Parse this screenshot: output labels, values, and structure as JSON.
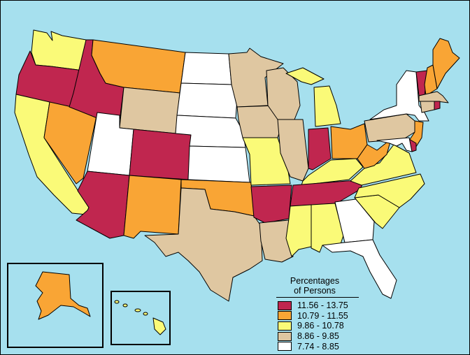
{
  "legend": {
    "title_line1": "Percentages",
    "title_line2": "of Persons",
    "classes": [
      {
        "label": "11.56 - 13.75",
        "color": "#c0264f"
      },
      {
        "label": "10.79 - 11.55",
        "color": "#f9a535"
      },
      {
        "label": "9.86 - 10.78",
        "color": "#fafa78"
      },
      {
        "label": "8.86 - 9.85",
        "color": "#dfc7a1"
      },
      {
        "label": "7.74 - 8.85",
        "color": "#ffffff"
      }
    ]
  },
  "colors": {
    "ocean": "#a6e0ee",
    "border": "#000000"
  },
  "states": {
    "WA": 2,
    "OR": 0,
    "CA": 2,
    "NV": 1,
    "ID": 0,
    "MT": 1,
    "WY": 3,
    "UT": 4,
    "AZ": 0,
    "CO": 0,
    "NM": 1,
    "ND": 4,
    "SD": 4,
    "NE": 4,
    "KS": 4,
    "OK": 1,
    "TX": 3,
    "MN": 3,
    "IA": 3,
    "MO": 2,
    "AR": 0,
    "LA": 3,
    "WI": 3,
    "IL": 3,
    "MI": 2,
    "IN": 0,
    "OH": 1,
    "KY": 2,
    "TN": 0,
    "MS": 2,
    "AL": 2,
    "GA": 4,
    "FL": 4,
    "SC": 2,
    "NC": 2,
    "VA": 2,
    "WV": 1,
    "PA": 3,
    "NY": 4,
    "NJ": 1,
    "DE": 0,
    "MD": 4,
    "VT": 0,
    "NH": 1,
    "ME": 1,
    "MA": 3,
    "CT": 3,
    "RI": 0,
    "AK": 1,
    "HI": 2
  }
}
